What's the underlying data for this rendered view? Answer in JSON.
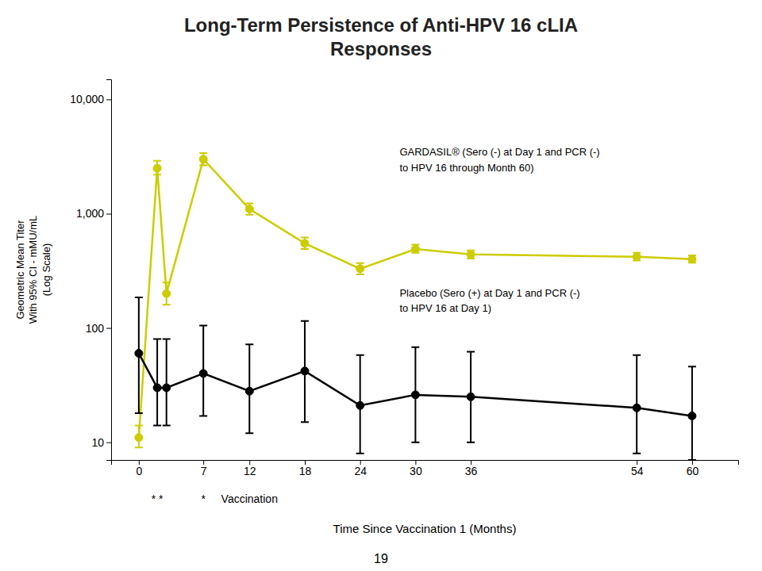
{
  "chart_data": {
    "type": "line",
    "title": "Long-Term Persistence of Anti-HPV 16 cLIA\nResponses",
    "x_label": "Time Since Vaccination 1 (Months)",
    "y_label": "Geometric Mean Titer\nWith 95% CI - mMU/mL\n(Log Scale)",
    "x": [
      0,
      2,
      3,
      7,
      12,
      18,
      24,
      30,
      36,
      54,
      60
    ],
    "series": [
      {
        "name": "GARDASIL® (Sero (-) at Day 1 and PCR (-)\nto HPV 16 through Month 60)",
        "color": "#cccc00",
        "values": [
          11,
          2500,
          200,
          3000,
          1100,
          550,
          330,
          490,
          440,
          420,
          400
        ],
        "lower": [
          9,
          2200,
          160,
          2650,
          980,
          490,
          295,
          455,
          405,
          390,
          372
        ],
        "upper": [
          14,
          2900,
          250,
          3400,
          1230,
          620,
          370,
          535,
          478,
          455,
          432
        ]
      },
      {
        "name": "Placebo (Sero (+) at Day 1 and PCR (-)\nto HPV 16 at Day 1)",
        "color": "black",
        "values": [
          60,
          30,
          30,
          40,
          28,
          42,
          21,
          26,
          25,
          20,
          17
        ],
        "lower": [
          18,
          14,
          14,
          17,
          12,
          15,
          8,
          10,
          10,
          8,
          7
        ],
        "upper": [
          185,
          80,
          80,
          105,
          72,
          115,
          58,
          68,
          62,
          58,
          46
        ]
      }
    ],
    "xlim": [
      -3,
      65
    ],
    "xticks": [
      0,
      7,
      12,
      18,
      24,
      30,
      36,
      54,
      60
    ],
    "ylim": [
      7,
      15000
    ],
    "yticks": [
      10,
      100,
      {
        "value": 1000,
        "label": "1,000"
      },
      {
        "value": 10000,
        "label": "10,000"
      }
    ],
    "log": "y",
    "grid": false,
    "marker": "circle",
    "line_style": "solid",
    "annotations": [
      {
        "text": "* *",
        "x": 2
      },
      {
        "text": "*",
        "x": 7
      },
      {
        "text": "Vaccination",
        "x": 12
      },
      {
        "text": "19"
      }
    ]
  }
}
